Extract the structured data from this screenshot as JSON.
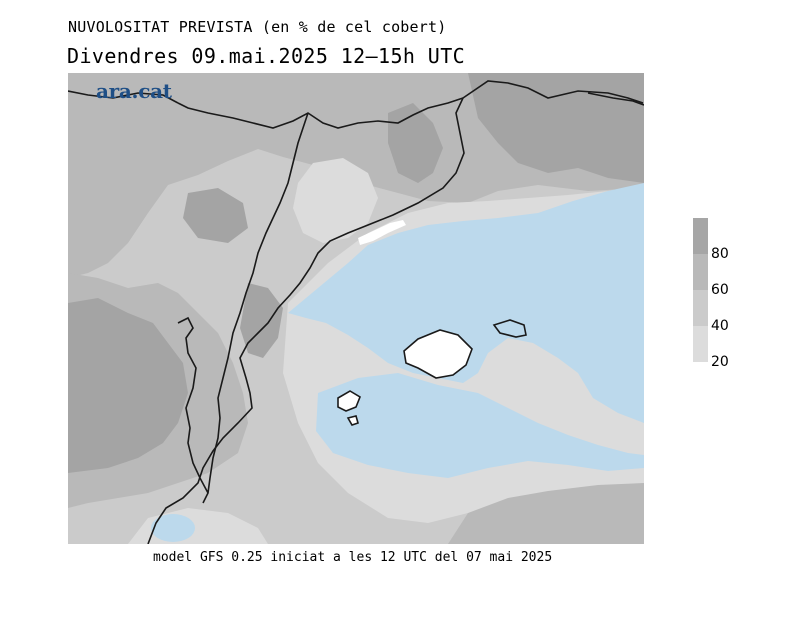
{
  "header": {
    "title": "NUVOLOSITAT PREVISTA (en % de cel cobert)",
    "subtitle": "Divendres  09.mai.2025 12—15h UTC"
  },
  "logo": {
    "text": "ara.cat",
    "color": "#1f4f86"
  },
  "footer": {
    "text": "model GFS 0.25 iniciat a les 12 UTC del 07 mai 2025"
  },
  "legend": {
    "ticks": [
      "80",
      "60",
      "40",
      "20"
    ],
    "colors": [
      "#a6a6a6",
      "#b9b9b9",
      "#cbcbcb",
      "#dcdcdc"
    ]
  },
  "map_colors": {
    "cover_80_100": "#a4a4a4",
    "cover_60_80": "#b9b9b9",
    "cover_40_60": "#cbcbcb",
    "cover_20_40": "#dcdcdc",
    "clear_sea": "#bcd9ec",
    "land_clear": "#ffffff",
    "coastline": "#1a1a1a"
  }
}
